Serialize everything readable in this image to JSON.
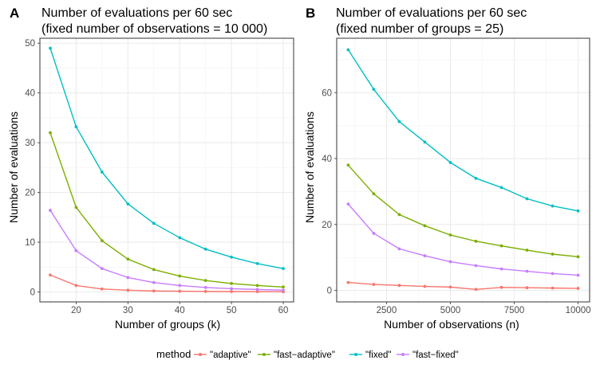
{
  "legend": {
    "title": "method",
    "position": "bottom",
    "entries": [
      {
        "label": "\"adaptive\"",
        "color": "#F8766D"
      },
      {
        "label": "\"fast−adaptive\"",
        "color": "#7CAE00"
      },
      {
        "label": "\"fixed\"",
        "color": "#00BFC4"
      },
      {
        "label": "\"fast−fixed\"",
        "color": "#C77CFF"
      }
    ]
  },
  "chart_data": [
    {
      "panel": "A",
      "type": "line",
      "title": [
        "Number of evaluations per 60 sec",
        "(fixed number of observations = 10 000)"
      ],
      "xlabel": "Number of groups (k)",
      "ylabel": "Number of evaluations",
      "xlim": [
        13,
        62
      ],
      "ylim": [
        -2,
        51
      ],
      "xticks": [
        20,
        30,
        40,
        50,
        60
      ],
      "xtick_labels": [
        "20",
        "30",
        "40",
        "50",
        "60"
      ],
      "yticks": [
        0,
        10,
        20,
        30,
        40,
        50
      ],
      "ytick_labels": [
        "0",
        "10",
        "20",
        "30",
        "40",
        "50"
      ],
      "grid": true,
      "x": [
        15,
        20,
        25,
        30,
        35,
        40,
        45,
        50,
        55,
        60
      ],
      "series": [
        {
          "name": "\"adaptive\"",
          "color": "#F8766D",
          "values": [
            3.4,
            1.3,
            0.6,
            0.35,
            0.2,
            0.15,
            0.1,
            0.08,
            0.06,
            0.05
          ]
        },
        {
          "name": "\"fast−adaptive\"",
          "color": "#7CAE00",
          "values": [
            32.0,
            17.0,
            10.3,
            6.6,
            4.5,
            3.2,
            2.3,
            1.7,
            1.3,
            1.0
          ]
        },
        {
          "name": "\"fixed\"",
          "color": "#00BFC4",
          "values": [
            49.0,
            33.2,
            24.1,
            17.7,
            13.8,
            10.9,
            8.6,
            7.0,
            5.7,
            4.7
          ]
        },
        {
          "name": "\"fast−fixed\"",
          "color": "#C77CFF",
          "values": [
            16.4,
            8.3,
            4.7,
            2.9,
            1.9,
            1.3,
            0.9,
            0.65,
            0.5,
            0.35
          ]
        }
      ]
    },
    {
      "panel": "B",
      "type": "line",
      "title": [
        "Number of evaluations per 60 sec",
        "(fixed number of groups = 25)"
      ],
      "xlabel": "Number of observations (n)",
      "ylabel": "Number of evaluations",
      "xlim": [
        550,
        10450
      ],
      "ylim": [
        -3.5,
        76.5
      ],
      "xticks": [
        2500,
        5000,
        7500,
        10000
      ],
      "xtick_labels": [
        "2500",
        "5000",
        "7500",
        "10000"
      ],
      "yticks": [
        0,
        20,
        40,
        60
      ],
      "ytick_labels": [
        "0",
        "20",
        "40",
        "60"
      ],
      "grid": true,
      "x": [
        1000,
        2000,
        3000,
        4000,
        5000,
        6000,
        7000,
        8000,
        9000,
        10000
      ],
      "series": [
        {
          "name": "\"adaptive\"",
          "color": "#F8766D",
          "values": [
            2.4,
            1.8,
            1.5,
            1.2,
            1.0,
            0.3,
            0.9,
            0.8,
            0.7,
            0.6
          ]
        },
        {
          "name": "\"fast−adaptive\"",
          "color": "#7CAE00",
          "values": [
            38.0,
            29.3,
            23.0,
            19.6,
            16.8,
            14.9,
            13.5,
            12.2,
            11.0,
            10.2
          ]
        },
        {
          "name": "\"fixed\"",
          "color": "#00BFC4",
          "values": [
            73.0,
            61.0,
            51.2,
            45.0,
            38.8,
            34.0,
            31.2,
            27.8,
            25.6,
            24.1
          ]
        },
        {
          "name": "\"fast−fixed\"",
          "color": "#C77CFF",
          "values": [
            26.2,
            17.3,
            12.6,
            10.5,
            8.7,
            7.5,
            6.5,
            5.8,
            5.1,
            4.6
          ]
        }
      ]
    }
  ]
}
